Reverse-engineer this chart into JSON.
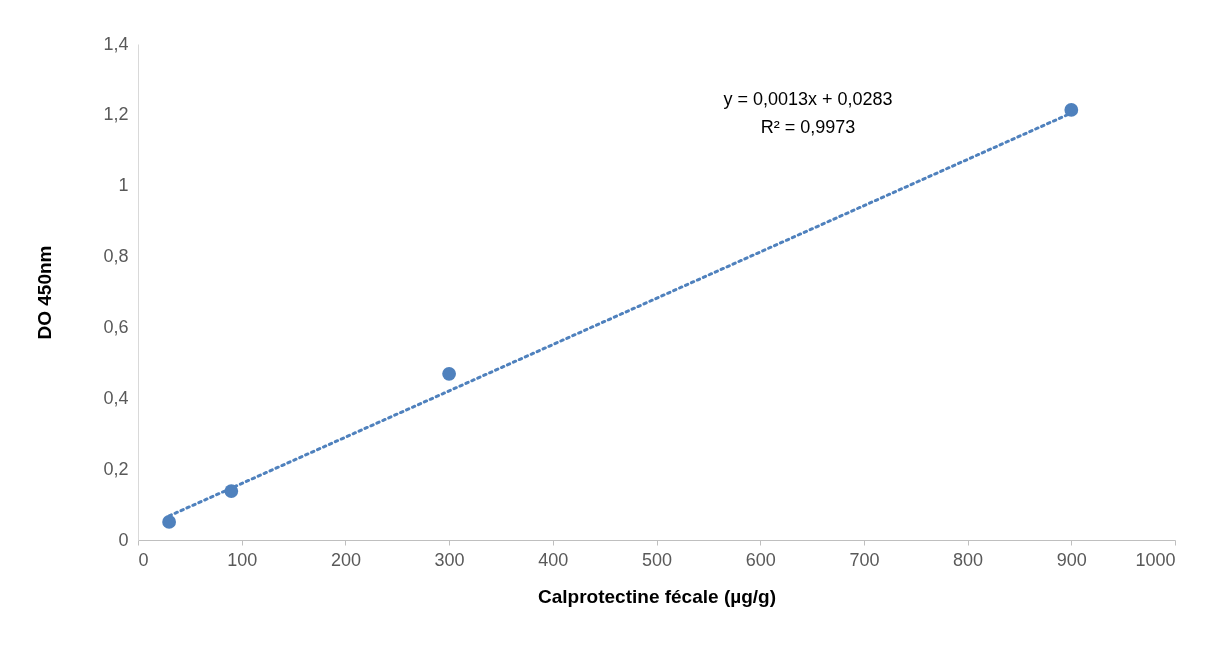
{
  "chart_data": {
    "type": "scatter",
    "xlabel": "Calprotectine fécale (µg/g)",
    "ylabel": "DO 450nm",
    "x": [
      30,
      90,
      300,
      900
    ],
    "series": [
      {
        "type": "scatter",
        "color": "#4f81bd",
        "marker": "circle",
        "values": [
          0.051,
          0.138,
          0.469,
          1.214
        ]
      },
      {
        "type": "line",
        "color": "#4f81bd",
        "line_style": "dotted",
        "x": [
          30,
          900
        ],
        "values": [
          0.068,
          1.205
        ]
      }
    ],
    "annotations": [
      "y = 0,0013x + 0,0283",
      "R² = 0,9973"
    ],
    "xlim": [
      0,
      1000
    ],
    "xticks": [
      0,
      100,
      200,
      300,
      400,
      500,
      600,
      700,
      800,
      900,
      1000
    ],
    "ylim": [
      0,
      1.4
    ],
    "yticks": [
      0,
      {
        "value": 0.2,
        "label": "0,2"
      },
      {
        "value": 0.4,
        "label": "0,4"
      },
      {
        "value": 0.6,
        "label": "0,6"
      },
      {
        "value": 0.8,
        "label": "0,8"
      },
      1,
      {
        "value": 1.2,
        "label": "1,2"
      },
      {
        "value": 1.4,
        "label": "1,4"
      }
    ],
    "grid": false
  }
}
